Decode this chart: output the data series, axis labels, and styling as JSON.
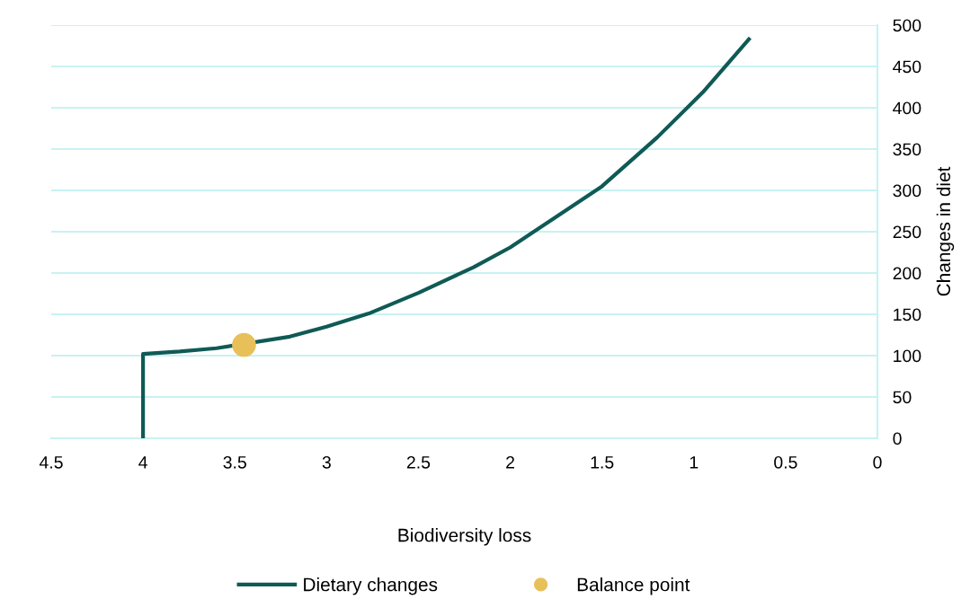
{
  "chart_data": {
    "type": "line",
    "xlabel": "Biodiversity loss",
    "ylabel": "Changes in diet",
    "xlim": [
      4.5,
      0
    ],
    "xticks": [
      4.5,
      4,
      3.5,
      3,
      2.5,
      2,
      1.5,
      1,
      0.5,
      0
    ],
    "ylim": [
      0,
      500
    ],
    "yticks": [
      0,
      50,
      100,
      150,
      200,
      250,
      300,
      350,
      400,
      450,
      500
    ],
    "grid": "y",
    "legend": "bottom",
    "series": [
      {
        "name": "Dietary changes",
        "color": "#0f5a55",
        "marker": "none",
        "line_style": "solid",
        "x": [
          4,
          4,
          3.8,
          3.6,
          3.2,
          3.0,
          2.77,
          2.5,
          2.2,
          2.0,
          1.75,
          1.5,
          1.2,
          0.95,
          0.7
        ],
        "values": [
          0,
          102,
          105,
          109,
          123,
          135,
          151,
          176,
          207,
          231,
          268,
          305,
          364,
          419,
          483
        ]
      },
      {
        "name": "Balance point",
        "type": "scatter",
        "color": "#e8c05a",
        "marker": "circle",
        "x": [
          3.45
        ],
        "values": [
          113
        ]
      }
    ]
  }
}
